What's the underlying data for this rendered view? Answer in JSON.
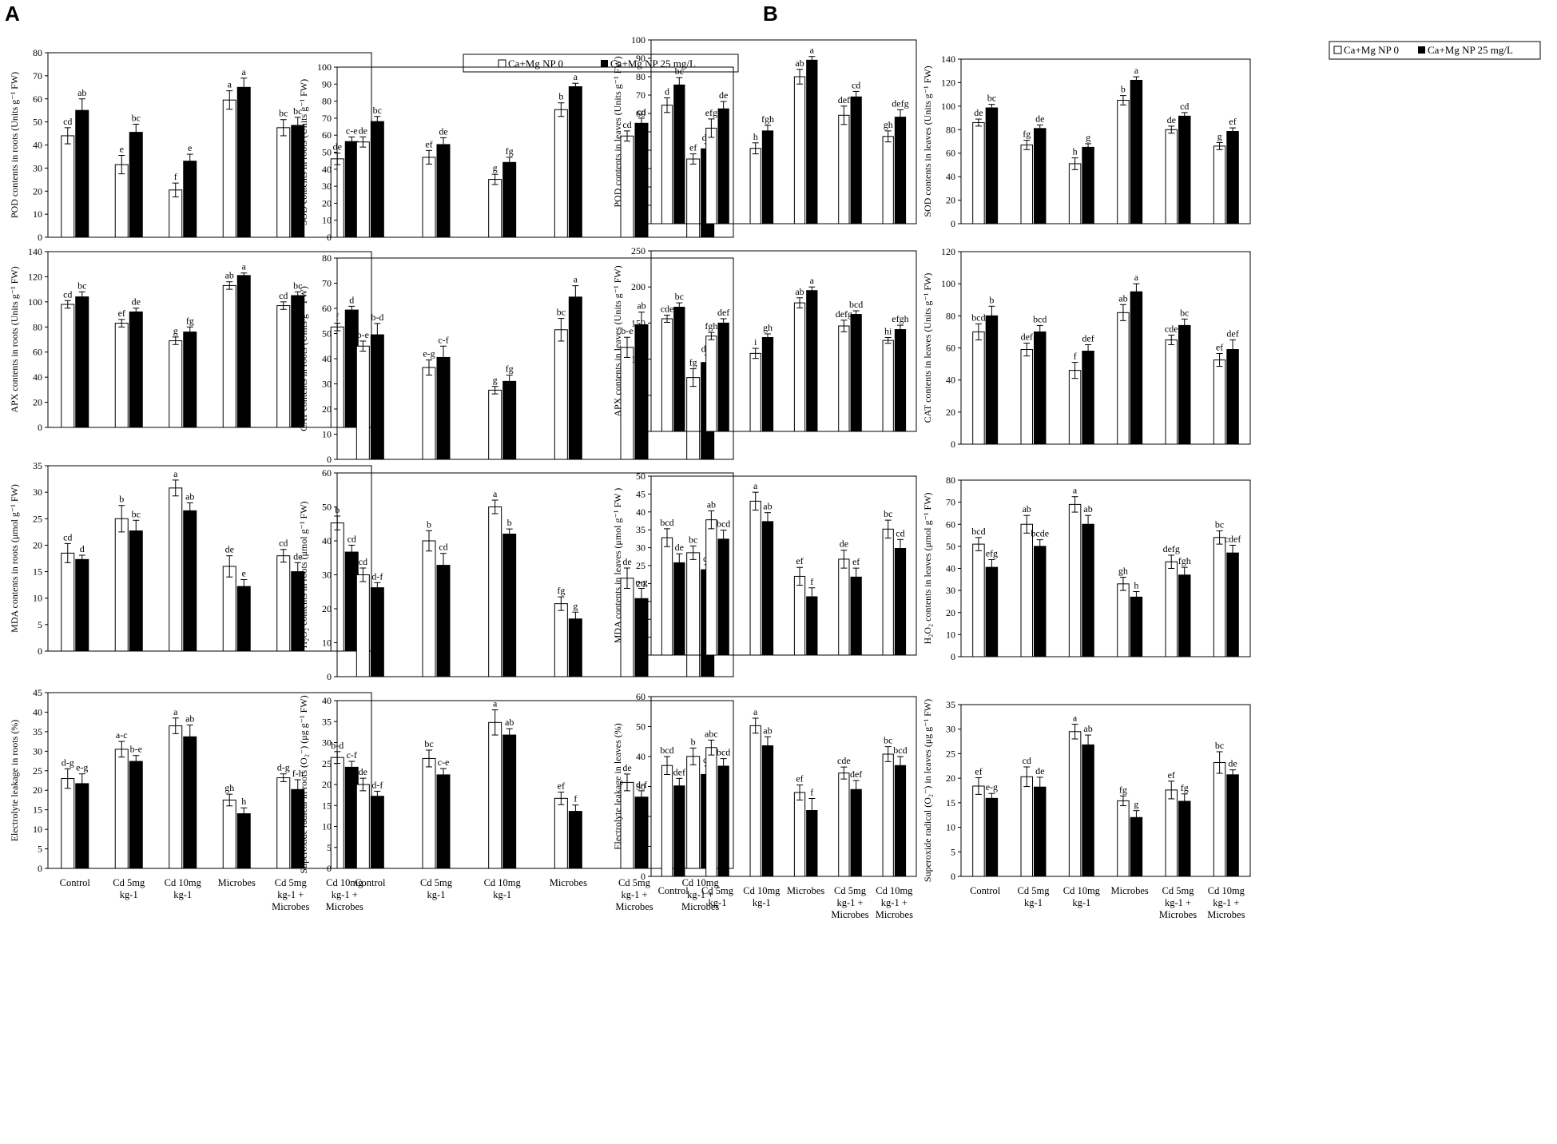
{
  "figure": {
    "panel_labels": [
      "A",
      "B"
    ],
    "legend": {
      "series": [
        "Ca+Mg NP 0",
        "Ca+Mg NP 25 mg/L"
      ]
    },
    "categories": [
      [
        "Control"
      ],
      [
        "Cd 5mg",
        "kg-1"
      ],
      [
        "Cd 10mg",
        "kg-1"
      ],
      [
        "Microbes"
      ],
      [
        "Cd 5mg",
        "kg-1 +",
        "Microbes"
      ],
      [
        "Cd 10mg",
        "kg-1 +",
        "Microbes"
      ]
    ]
  },
  "chart_data": [
    {
      "type": "bar",
      "ylabel": "POD contents in roots (Units g⁻¹ FW)",
      "ylim": [
        0,
        80
      ],
      "ystep": 10,
      "series": [
        {
          "name": "Ca+Mg NP 0",
          "values": [
            44,
            31.5,
            20.5,
            59.5,
            47.5,
            34
          ],
          "errors": [
            3.5,
            4,
            3,
            4,
            3.5,
            2.5
          ],
          "letters": [
            "cd",
            "e",
            "f",
            "a",
            "bc",
            "de"
          ]
        },
        {
          "name": "Ca+Mg NP 25 mg/L",
          "values": [
            55,
            45.5,
            33,
            65,
            48.5,
            41.5
          ],
          "errors": [
            5,
            3.5,
            3,
            4,
            3.5,
            2
          ],
          "letters": [
            "ab",
            "bc",
            "e",
            "a",
            "bc",
            "c-e"
          ]
        }
      ]
    },
    {
      "type": "bar",
      "ylabel": "SOD contents in roots (Units g⁻¹ FW)",
      "ylim": [
        0,
        100
      ],
      "ystep": 10,
      "series": [
        {
          "name": "Ca+Mg NP 0",
          "values": [
            56,
            47,
            34,
            75,
            59.5,
            46
          ],
          "errors": [
            3,
            4,
            3,
            4,
            3,
            3
          ],
          "letters": [
            "de",
            "ef",
            "g",
            "b",
            "cd",
            "ef"
          ]
        },
        {
          "name": "Ca+Mg NP 25 mg/L",
          "values": [
            68,
            54.5,
            44,
            88.5,
            67,
            52
          ],
          "errors": [
            3,
            4,
            3,
            2,
            3,
            3
          ],
          "letters": [
            "bc",
            "de",
            "fg",
            "a",
            "cd",
            "d-f"
          ]
        }
      ]
    },
    {
      "type": "bar",
      "ylabel": "APX contents in roots (Units g⁻¹ FW)",
      "ylim": [
        0,
        140
      ],
      "ystep": 20,
      "series": [
        {
          "name": "Ca+Mg NP 0",
          "values": [
            98,
            83,
            69,
            113,
            97,
            80
          ],
          "errors": [
            3,
            3,
            3,
            3,
            3,
            3
          ],
          "letters": [
            "cd",
            "ef",
            "g",
            "ab",
            "cd",
            "f"
          ]
        },
        {
          "name": "Ca+Mg NP 25 mg/L",
          "values": [
            104,
            92,
            76,
            121,
            105,
            93.5
          ],
          "errors": [
            4,
            3,
            4,
            2,
            3,
            3
          ],
          "letters": [
            "bc",
            "de",
            "fg",
            "a",
            "bc",
            "d"
          ]
        }
      ]
    },
    {
      "type": "bar",
      "ylabel": "CAT contents in roots (Units g⁻¹ FW)",
      "ylim": [
        0,
        80
      ],
      "ystep": 10,
      "series": [
        {
          "name": "Ca+Mg NP 0",
          "values": [
            45,
            36.5,
            27.5,
            51.5,
            44.5,
            32.5
          ],
          "errors": [
            2,
            3,
            1.5,
            4.5,
            4,
            3.5
          ],
          "letters": [
            "b-e",
            "e-g",
            "g",
            "bc",
            "b-e",
            "fg"
          ]
        },
        {
          "name": "Ca+Mg NP 25 mg/L",
          "values": [
            49.5,
            40.5,
            31,
            64.5,
            53.5,
            38.5
          ],
          "errors": [
            4.5,
            4.5,
            2.5,
            4.5,
            5,
            3
          ],
          "letters": [
            "b-d",
            "c-f",
            "fg",
            "a",
            "ab",
            "d-g"
          ]
        }
      ]
    },
    {
      "type": "bar",
      "ylabel": "MDA contents in roots (μmol g⁻¹ FW)",
      "ylim": [
        0,
        35
      ],
      "ystep": 5,
      "series": [
        {
          "name": "Ca+Mg NP 0",
          "values": [
            18.5,
            25,
            30.8,
            16,
            18,
            24.2
          ],
          "errors": [
            1.8,
            2.5,
            1.5,
            2,
            1.2,
            1.3
          ],
          "letters": [
            "cd",
            "b",
            "a",
            "de",
            "cd",
            "b"
          ]
        },
        {
          "name": "Ca+Mg NP 25 mg/L",
          "values": [
            17.3,
            22.7,
            26.5,
            12.2,
            15,
            18.7
          ],
          "errors": [
            0.8,
            2,
            1.5,
            1.3,
            1.7,
            1.3
          ],
          "letters": [
            "d",
            "bc",
            "ab",
            "e",
            "de",
            "cd"
          ]
        }
      ]
    },
    {
      "type": "bar",
      "ylabel": "H₂O₂ contents in roots (μmol g⁻¹ FW)",
      "ylim": [
        0,
        60
      ],
      "ystep": 10,
      "series": [
        {
          "name": "Ca+Mg NP 0",
          "values": [
            30,
            40,
            50,
            21.5,
            29,
            36.5
          ],
          "errors": [
            2,
            3,
            2,
            2,
            3,
            2
          ],
          "letters": [
            "cd",
            "b",
            "a",
            "fg",
            "de",
            "bc"
          ]
        },
        {
          "name": "Ca+Mg NP 25 mg/L",
          "values": [
            26.2,
            32.8,
            42,
            17,
            23,
            31.5
          ],
          "errors": [
            1.5,
            3.5,
            1.5,
            2,
            3,
            1.5
          ],
          "letters": [
            "d-f",
            "cd",
            "b",
            "g",
            "e-g",
            "cd"
          ]
        }
      ]
    },
    {
      "type": "bar",
      "ylabel": "Electrolyte leakage in roots (%)",
      "ylim": [
        0,
        45
      ],
      "ystep": 5,
      "series": [
        {
          "name": "Ca+Mg NP 0",
          "values": [
            23,
            30.5,
            36.5,
            17.5,
            23.2,
            28.4
          ],
          "errors": [
            2.5,
            2,
            2,
            1.5,
            1,
            1.5
          ],
          "letters": [
            "d-g",
            "a-c",
            "a",
            "gh",
            "d-g",
            "b-d"
          ]
        },
        {
          "name": "Ca+Mg NP 25 mg/L",
          "values": [
            21.7,
            27.4,
            33.7,
            14,
            20.2,
            25.9
          ],
          "errors": [
            2.5,
            1.5,
            3,
            1.5,
            2.5,
            1.5
          ],
          "letters": [
            "e-g",
            "b-e",
            "ab",
            "h",
            "f-h",
            "c-f"
          ]
        }
      ]
    },
    {
      "type": "bar",
      "ylabel": "Superoxide radical in roots (O₂⁻) (μg g⁻¹ FW)",
      "ylim": [
        0,
        40
      ],
      "ystep": 5,
      "series": [
        {
          "name": "Ca+Mg NP 0",
          "values": [
            20,
            26.2,
            34.8,
            16.7,
            20.5,
            26.7
          ],
          "errors": [
            1.5,
            2,
            3,
            1.5,
            2,
            2
          ],
          "letters": [
            "de",
            "bc",
            "a",
            "ef",
            "de",
            "b"
          ]
        },
        {
          "name": "Ca+Mg NP 25 mg/L",
          "values": [
            17.2,
            22.3,
            31.8,
            13.6,
            17,
            22.4
          ],
          "errors": [
            1.2,
            1.5,
            1.5,
            1.5,
            1.5,
            2
          ],
          "letters": [
            "d-f",
            "c-e",
            "ab",
            "f",
            "d-f",
            "cd"
          ]
        }
      ]
    },
    {
      "type": "bar",
      "ylabel": "POD contents in leaves (Units g⁻¹ FW)",
      "ylim": [
        0,
        100
      ],
      "ystep": 10,
      "series": [
        {
          "name": "Ca+Mg NP 0",
          "values": [
            64.5,
            52,
            41,
            80,
            59,
            47.5
          ],
          "errors": [
            4,
            5,
            3,
            4,
            5,
            3
          ],
          "letters": [
            "d",
            "efg",
            "h",
            "ab",
            "def",
            "gh"
          ]
        },
        {
          "name": "Ca+Mg NP 25 mg/L",
          "values": [
            75.5,
            62.5,
            50.5,
            89,
            69,
            58
          ],
          "errors": [
            4,
            4,
            3,
            2,
            3,
            4
          ],
          "letters": [
            "bc",
            "de",
            "fgh",
            "a",
            "cd",
            "defg"
          ]
        }
      ]
    },
    {
      "type": "bar",
      "ylabel": "SOD contents in leaves (Units g⁻¹ FW)",
      "ylim": [
        0,
        140
      ],
      "ystep": 20,
      "series": [
        {
          "name": "Ca+Mg NP 0",
          "values": [
            86,
            67,
            51,
            105,
            80,
            66
          ],
          "errors": [
            3,
            4,
            5,
            4,
            3,
            3
          ],
          "letters": [
            "de",
            "fg",
            "h",
            "b",
            "de",
            "g"
          ]
        },
        {
          "name": "Ca+Mg NP 25 mg/L",
          "values": [
            98.5,
            81,
            65,
            122,
            91.5,
            78.5
          ],
          "errors": [
            3,
            3,
            3,
            3,
            3,
            3
          ],
          "letters": [
            "bc",
            "de",
            "g",
            "a",
            "cd",
            "ef"
          ]
        }
      ]
    },
    {
      "type": "bar",
      "ylabel": "APX contents in leaves (Units g⁻¹ FW)",
      "ylim": [
        0,
        250
      ],
      "ystep": 50,
      "series": [
        {
          "name": "Ca+Mg NP 0",
          "values": [
            156,
            132,
            108,
            178,
            146,
            126
          ],
          "errors": [
            5,
            5,
            7,
            7,
            8,
            4
          ],
          "letters": [
            "cde",
            "fgh",
            "i",
            "ab",
            "defg",
            "hi"
          ]
        },
        {
          "name": "Ca+Mg NP 25 mg/L",
          "values": [
            172,
            150,
            130,
            195,
            162,
            141
          ],
          "errors": [
            6,
            6,
            5,
            5,
            5,
            6
          ],
          "letters": [
            "bc",
            "def",
            "gh",
            "a",
            "bcd",
            "efgh"
          ]
        }
      ]
    },
    {
      "type": "bar",
      "ylabel": "CAT contents in leaves (Units g⁻¹ FW)",
      "ylim": [
        0,
        120
      ],
      "ystep": 20,
      "series": [
        {
          "name": "Ca+Mg NP 0",
          "values": [
            70,
            59,
            46,
            82,
            65,
            52.5
          ],
          "errors": [
            5,
            4,
            5,
            5,
            3,
            4
          ],
          "letters": [
            "bcd",
            "def",
            "f",
            "ab",
            "cde",
            "ef"
          ]
        },
        {
          "name": "Ca+Mg NP 25 mg/L",
          "values": [
            80,
            70,
            58,
            95,
            74,
            59
          ],
          "errors": [
            6,
            4,
            4,
            5,
            4,
            6
          ],
          "letters": [
            "b",
            "bcd",
            "def",
            "a",
            "bc",
            "def"
          ]
        }
      ]
    },
    {
      "type": "bar",
      "ylabel": "MDA contents in leaves (μmol g⁻¹ FW )",
      "ylim": [
        0,
        50
      ],
      "ystep": 5,
      "series": [
        {
          "name": "Ca+Mg NP 0",
          "values": [
            32.8,
            37.8,
            43,
            22,
            26.8,
            35.2
          ],
          "errors": [
            2.5,
            2.5,
            2.5,
            2.5,
            2.5,
            2.5
          ],
          "letters": [
            "bcd",
            "ab",
            "a",
            "ef",
            "de",
            "bc"
          ]
        },
        {
          "name": "Ca+Mg NP 25 mg/L",
          "values": [
            25.8,
            32.4,
            37.3,
            16.3,
            21.8,
            29.8
          ],
          "errors": [
            2.5,
            2.5,
            2.5,
            2.5,
            2.5,
            2.5
          ],
          "letters": [
            "de",
            "bcd",
            "ab",
            "f",
            "ef",
            "cd"
          ]
        }
      ]
    },
    {
      "type": "bar",
      "ylabel": "H₂O₂ contents in leaves (μmol g⁻¹ FW)",
      "ylim": [
        0,
        80
      ],
      "ystep": 10,
      "series": [
        {
          "name": "Ca+Mg NP 0",
          "values": [
            51,
            60,
            69,
            33,
            43,
            54
          ],
          "errors": [
            3,
            4,
            3.5,
            3,
            3,
            3
          ],
          "letters": [
            "bcd",
            "ab",
            "a",
            "gh",
            "defg",
            "bc"
          ]
        },
        {
          "name": "Ca+Mg NP 25 mg/L",
          "values": [
            40.5,
            50,
            60,
            27,
            37,
            47
          ],
          "errors": [
            3.5,
            3,
            4,
            2.5,
            3.5,
            3.5
          ],
          "letters": [
            "efg",
            "bcde",
            "ab",
            "h",
            "fgh",
            "cdef"
          ]
        }
      ]
    },
    {
      "type": "bar",
      "ylabel": "Electrolyte leakage in leaves (%)",
      "ylim": [
        0,
        60
      ],
      "ystep": 10,
      "series": [
        {
          "name": "Ca+Mg NP 0",
          "values": [
            37,
            43,
            50.3,
            28,
            34.5,
            40.8
          ],
          "errors": [
            3,
            2.5,
            2.5,
            2.5,
            2,
            2.5
          ],
          "letters": [
            "bcd",
            "abc",
            "a",
            "ef",
            "cde",
            "bc"
          ]
        },
        {
          "name": "Ca+Mg NP 25 mg/L",
          "values": [
            30.2,
            36.8,
            43.6,
            22,
            29,
            37
          ],
          "errors": [
            2.5,
            2.5,
            3,
            4,
            3,
            3
          ],
          "letters": [
            "def",
            "bcd",
            "ab",
            "f",
            "def",
            "bcd"
          ]
        }
      ]
    },
    {
      "type": "bar",
      "ylabel": "Superoxide radical (O₂⁻) in leaves (μg g⁻¹ FW)",
      "ylim": [
        0,
        35
      ],
      "ystep": 5,
      "series": [
        {
          "name": "Ca+Mg NP 0",
          "values": [
            18.4,
            20.3,
            29.5,
            15.4,
            17.6,
            23.2
          ],
          "errors": [
            1.7,
            2,
            1.5,
            1,
            1.8,
            2.2
          ],
          "letters": [
            "ef",
            "cd",
            "a",
            "fg",
            "ef",
            "bc"
          ]
        },
        {
          "name": "Ca+Mg NP 25 mg/L",
          "values": [
            15.9,
            18.2,
            26.8,
            12,
            15.3,
            20.7
          ],
          "errors": [
            1,
            2,
            2,
            1.4,
            1.5,
            1
          ],
          "letters": [
            "e-g",
            "de",
            "ab",
            "g",
            "fg",
            "de"
          ]
        }
      ]
    }
  ]
}
